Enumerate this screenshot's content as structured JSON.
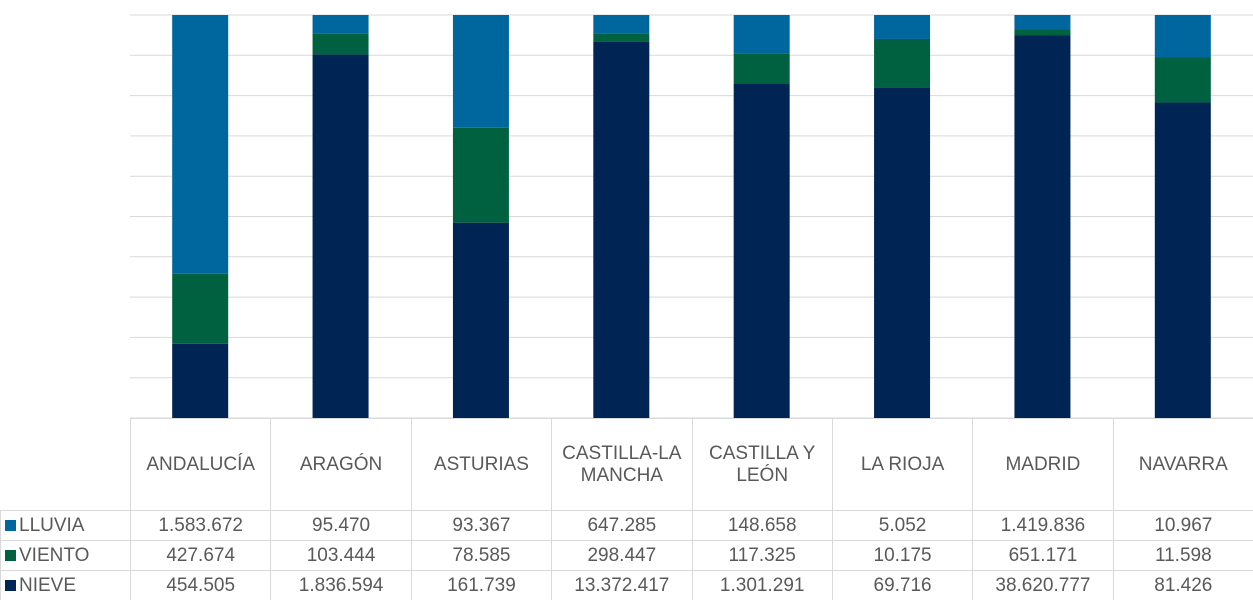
{
  "chart_data": {
    "type": "stacked-bar-100",
    "categories": [
      "ANDALUCÍA",
      "ARAGÓN",
      "ASTURIAS",
      "CASTILLA-LA MANCHA",
      "CASTILLA Y LEÓN",
      "LA RIOJA",
      "MADRID",
      "NAVARRA"
    ],
    "series": [
      {
        "name": "LLUVIA",
        "color": "#00679e",
        "values": [
          1583672,
          95470,
          93367,
          647285,
          148658,
          5052,
          1419836,
          10967
        ],
        "value_labels": [
          "1.583.672",
          "95.470",
          "93.367",
          "647.285",
          "148.658",
          "5.052",
          "1.419.836",
          "10.967"
        ]
      },
      {
        "name": "VIENTO",
        "color": "#006140",
        "values": [
          427674,
          103444,
          78585,
          298447,
          117325,
          10175,
          651171,
          11598
        ],
        "value_labels": [
          "427.674",
          "103.444",
          "78.585",
          "298.447",
          "117.325",
          "10.175",
          "651.171",
          "11.598"
        ]
      },
      {
        "name": "NIEVE",
        "color": "#002554",
        "values": [
          454505,
          1836594,
          161739,
          13372417,
          1301291,
          69716,
          38620777,
          81426
        ],
        "value_labels": [
          "454.505",
          "1.836.594",
          "161.739",
          "13.372.417",
          "1.301.291",
          "69.716",
          "38.620.777",
          "81.426"
        ]
      }
    ],
    "ylim": [
      0,
      100
    ],
    "yticks": [
      0,
      10,
      20,
      30,
      40,
      50,
      60,
      70,
      80,
      90,
      100
    ],
    "grid": true
  }
}
